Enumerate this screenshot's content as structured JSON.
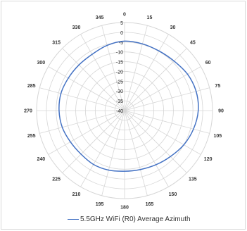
{
  "chart_data": {
    "type": "line",
    "subtype": "polar",
    "title": "",
    "angle_ticks": [
      "0",
      "15",
      "30",
      "45",
      "60",
      "75",
      "90",
      "105",
      "120",
      "135",
      "150",
      "165",
      "180",
      "195",
      "210",
      "225",
      "240",
      "255",
      "270",
      "285",
      "300",
      "315",
      "330",
      "345"
    ],
    "radial_ticks": [
      "5",
      "0",
      "-5",
      "-10",
      "-15",
      "-20",
      "-25",
      "-30",
      "-35",
      "-40"
    ],
    "radial_range": [
      -40,
      5
    ],
    "grid": true,
    "legend_position": "bottom",
    "series": [
      {
        "name": "5.5GHz WiFi (R0) Average Azimuth",
        "color": "#4472c4",
        "angles": [
          0,
          15,
          30,
          45,
          60,
          75,
          90,
          105,
          120,
          135,
          150,
          165,
          180,
          195,
          210,
          225,
          240,
          255,
          270,
          285,
          300,
          315,
          330,
          345
        ],
        "values": [
          -4.5,
          -4.7,
          -4.8,
          -4.2,
          -2.8,
          -2.1,
          -2.3,
          -3.5,
          -5.0,
          -6.8,
          -8.0,
          -8.8,
          -9.0,
          -8.5,
          -8.2,
          -8.5,
          -8.0,
          -7.0,
          -6.5,
          -6.3,
          -6.8,
          -7.0,
          -6.8,
          -5.5
        ]
      }
    ]
  }
}
